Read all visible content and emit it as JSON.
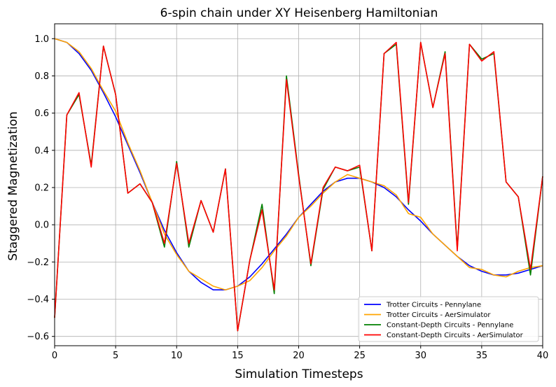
{
  "chart_data": {
    "type": "line",
    "title": "6-spin chain under XY Heisenberg Hamiltonian",
    "xlabel": "Simulation Timesteps",
    "ylabel": "Staggered Magnetization",
    "xlim": [
      0,
      40
    ],
    "ylim": [
      -0.65,
      1.08
    ],
    "xticks": [
      0,
      5,
      10,
      15,
      20,
      25,
      30,
      35,
      40
    ],
    "yticks": [
      -0.6,
      -0.4,
      -0.2,
      0.0,
      0.2,
      0.4,
      0.6,
      0.8,
      1.0
    ],
    "xtick_labels": [
      "0",
      "5",
      "10",
      "15",
      "20",
      "25",
      "30",
      "35",
      "40"
    ],
    "ytick_labels": [
      "−0.6",
      "−0.4",
      "−0.2",
      "0.0",
      "0.2",
      "0.4",
      "0.6",
      "0.8",
      "1.0"
    ],
    "grid": true,
    "legend_position": "bottom-right",
    "x": [
      0,
      1,
      2,
      3,
      4,
      5,
      6,
      7,
      8,
      9,
      10,
      11,
      12,
      13,
      14,
      15,
      16,
      17,
      18,
      19,
      20,
      21,
      22,
      23,
      24,
      25,
      26,
      27,
      28,
      29,
      30,
      31,
      32,
      33,
      34,
      35,
      36,
      37,
      38,
      39,
      40
    ],
    "series": [
      {
        "name": "Trotter Circuits - Pennylane",
        "color": "#0000ff",
        "values": [
          1.0,
          0.98,
          0.92,
          0.83,
          0.71,
          0.58,
          0.43,
          0.28,
          0.12,
          -0.03,
          -0.15,
          -0.25,
          -0.31,
          -0.35,
          -0.35,
          -0.33,
          -0.28,
          -0.21,
          -0.13,
          -0.05,
          0.04,
          0.11,
          0.18,
          0.23,
          0.25,
          0.25,
          0.23,
          0.2,
          0.15,
          0.08,
          0.02,
          -0.05,
          -0.11,
          -0.17,
          -0.22,
          -0.25,
          -0.27,
          -0.27,
          -0.26,
          -0.24,
          -0.22
        ]
      },
      {
        "name": "Trotter Circuits - AerSimulator",
        "color": "#ffa500",
        "values": [
          1.0,
          0.98,
          0.93,
          0.84,
          0.72,
          0.61,
          0.44,
          0.29,
          0.12,
          -0.05,
          -0.16,
          -0.25,
          -0.29,
          -0.33,
          -0.35,
          -0.33,
          -0.3,
          -0.23,
          -0.14,
          -0.06,
          0.04,
          0.1,
          0.17,
          0.23,
          0.27,
          0.25,
          0.23,
          0.21,
          0.16,
          0.06,
          0.04,
          -0.05,
          -0.11,
          -0.17,
          -0.23,
          -0.24,
          -0.27,
          -0.28,
          -0.25,
          -0.23,
          -0.22
        ]
      },
      {
        "name": "Constant-Depth Circuits - Pennylane",
        "color": "#008000",
        "values": [
          -0.5,
          0.59,
          0.7,
          0.32,
          0.96,
          0.7,
          0.17,
          0.22,
          0.12,
          -0.12,
          0.34,
          -0.12,
          0.13,
          -0.04,
          0.3,
          -0.57,
          -0.19,
          0.11,
          -0.37,
          0.8,
          0.27,
          -0.22,
          0.19,
          0.31,
          0.29,
          0.31,
          -0.14,
          0.92,
          0.97,
          0.11,
          0.98,
          0.63,
          0.93,
          -0.13,
          0.97,
          0.89,
          0.92,
          0.23,
          0.15,
          -0.27,
          0.26
        ]
      },
      {
        "name": "Constant-Depth Circuits - AerSimulator",
        "color": "#ff0000",
        "values": [
          -0.5,
          0.59,
          0.71,
          0.31,
          0.96,
          0.7,
          0.17,
          0.22,
          0.12,
          -0.1,
          0.33,
          -0.1,
          0.13,
          -0.04,
          0.3,
          -0.57,
          -0.19,
          0.08,
          -0.35,
          0.78,
          0.26,
          -0.21,
          0.2,
          0.31,
          0.29,
          0.32,
          -0.14,
          0.92,
          0.98,
          0.12,
          0.98,
          0.63,
          0.92,
          -0.14,
          0.97,
          0.88,
          0.93,
          0.23,
          0.15,
          -0.24,
          0.26
        ]
      }
    ]
  }
}
